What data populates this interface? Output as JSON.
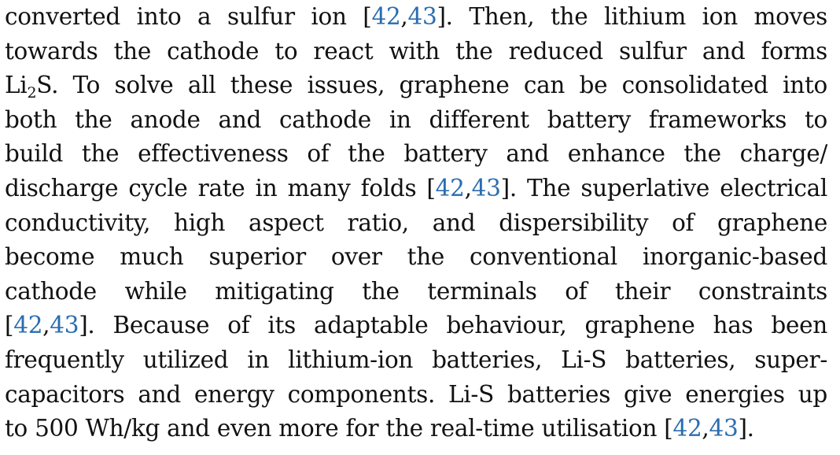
{
  "paragraph": {
    "l1": {
      "a": "converted into a sulfur ion [",
      "cite1": "42",
      "sep": ",",
      "cite2": "43",
      "b": "]. Then, the lithium ion moves"
    },
    "l2": {
      "text": "towards the cathode to react with the reduced sulfur and forms"
    },
    "l3": {
      "a": "Li",
      "sub": "2",
      "b": "S. To solve all these issues, graphene can be consolidated into"
    },
    "l4": {
      "text": "both the anode and cathode in different battery frameworks to"
    },
    "l5": {
      "text": "build the effectiveness of the battery and enhance the charge/"
    },
    "l6": {
      "a": "discharge cycle rate in many folds [",
      "cite1": "42",
      "sep": ",",
      "cite2": "43",
      "b": "]. The superlative electrical"
    },
    "l7": {
      "text": "conductivity, high aspect ratio, and dispersibility of graphene"
    },
    "l8": {
      "text": "become much superior over the conventional inorganic-based"
    },
    "l9": {
      "text": "cathode while mitigating the terminals of their constraints"
    },
    "l10": {
      "a": "[",
      "cite1": "42",
      "sep": ",",
      "cite2": "43",
      "b": "]. Because of its adaptable behaviour, graphene has been"
    },
    "l11": {
      "text": "frequently utilized in lithium-ion batteries, Li-S batteries, super-"
    },
    "l12": {
      "text": "capacitors and energy components. Li-S batteries give energies up"
    },
    "l13": {
      "a": "to 500 Wh/kg and even more for the real-time utilisation [",
      "cite1": "42",
      "sep": ",",
      "cite2": "43",
      "b": "]."
    }
  }
}
